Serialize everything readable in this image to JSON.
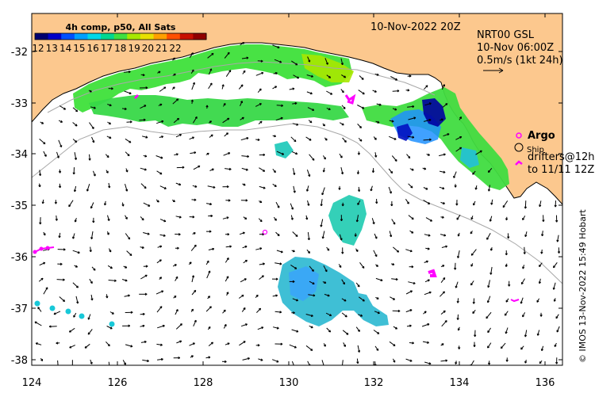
{
  "header": {
    "date": "10-Nov-2022 20Z",
    "product": "NRT00 GSL",
    "time": "10-Nov 06:00Z",
    "arrow_scale": "0.5m/s (1kt 24h)"
  },
  "colorbar": {
    "title": "4h comp, p50, All Sats",
    "ticks": [
      "12",
      "13",
      "14",
      "15",
      "16",
      "17",
      "18",
      "19",
      "20",
      "21",
      "22"
    ],
    "colors": [
      "#000070",
      "#0000c8",
      "#0050ff",
      "#00a0ff",
      "#00d8e8",
      "#00d890",
      "#40e040",
      "#a8e800",
      "#e8e000",
      "#ffa000",
      "#ff5000",
      "#c81000",
      "#900000"
    ]
  },
  "legend": {
    "argo": "Argo",
    "ship": "Ship",
    "drifters_line1": "drifters@12h",
    "drifters_line2": "to 11/11 12Z",
    "argo_color": "#ff00ff",
    "drifter_color": "#ff00ff"
  },
  "axes": {
    "x_ticks": [
      "124",
      "126",
      "128",
      "130",
      "132",
      "134",
      "136"
    ],
    "y_ticks": [
      "-32",
      "-33",
      "-34",
      "-35",
      "-36",
      "-37",
      "-38"
    ]
  },
  "credit": "© IMOS 13-Nov-2022 15:49 Hobart",
  "colors": {
    "land": "#fcc88e",
    "ocean": "#ffffff",
    "arrow": "#000000"
  }
}
